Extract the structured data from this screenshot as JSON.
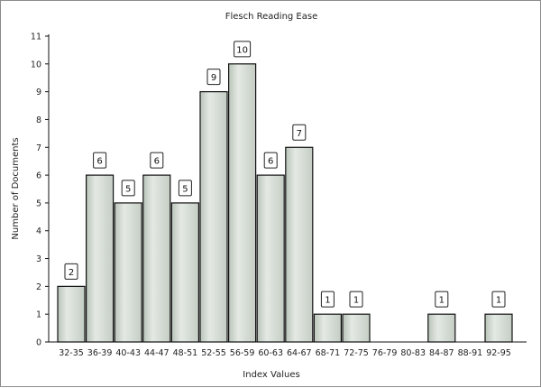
{
  "chart_data": {
    "type": "bar",
    "title": "Flesch Reading Ease",
    "xlabel": "Index Values",
    "ylabel": "Number of Documents",
    "categories": [
      "32-35",
      "36-39",
      "40-43",
      "44-47",
      "48-51",
      "52-55",
      "56-59",
      "60-63",
      "64-67",
      "68-71",
      "72-75",
      "76-79",
      "80-83",
      "84-87",
      "88-91",
      "92-95"
    ],
    "values": [
      2,
      6,
      5,
      6,
      5,
      9,
      10,
      6,
      7,
      1,
      1,
      0,
      0,
      1,
      0,
      1
    ],
    "ylim": [
      0,
      11
    ],
    "yticks": [
      0,
      1,
      2,
      3,
      4,
      5,
      6,
      7,
      8,
      9,
      10,
      11
    ],
    "grid": false,
    "data_labels": true,
    "colors": {
      "bar_fill": "#cdd6cd",
      "bar_highlight": "#e6ebe6",
      "bar_stroke": "#111111",
      "axis": "#111111"
    }
  }
}
